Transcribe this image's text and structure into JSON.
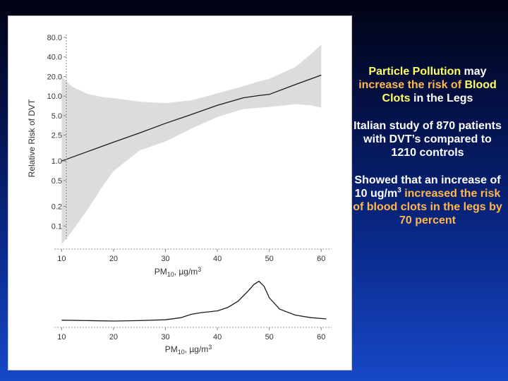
{
  "colors": {
    "background_top": "#010313",
    "background_bottom": "#1748c8",
    "highlight_yellow": "#ffff66",
    "highlight_orange": "#ffb84d",
    "confidence_band": "#dcdcdc",
    "curve": "#1a1a1a"
  },
  "chart_data": [
    {
      "type": "line",
      "title": "",
      "xlabel": "PM10, µg/m³",
      "xlabel_main": "PM",
      "xlabel_sub": "10",
      "xlabel_rest": ", µg/m",
      "xlabel_sup": "3",
      "ylabel": "Relative Risk of DVT",
      "y_scale": "log",
      "xlim": [
        9,
        62
      ],
      "ylim": [
        0.05,
        80
      ],
      "x_ticks": [
        10,
        20,
        30,
        40,
        50,
        60
      ],
      "y_ticks": [
        0.1,
        0.2,
        0.5,
        1.0,
        2.5,
        5.0,
        10.0,
        20.0,
        40.0,
        80.0
      ],
      "x_tick_labels": [
        "10",
        "20",
        "30",
        "40",
        "50",
        "60"
      ],
      "y_tick_labels": [
        "0.1",
        "0.2",
        "0.5",
        "1.0",
        "2.5",
        "5.0",
        "10.0",
        "20.0",
        "40.0",
        "80.0"
      ],
      "grid": false,
      "series": [
        {
          "role": "estimate",
          "x": [
            10,
            15,
            20,
            25,
            30,
            35,
            40,
            45,
            48,
            50,
            55,
            60
          ],
          "y": [
            1.0,
            1.4,
            1.95,
            2.7,
            3.8,
            5.2,
            7.2,
            9.4,
            10.2,
            10.6,
            15.0,
            21.0
          ]
        },
        {
          "role": "ci_upper",
          "x": [
            10,
            12,
            15,
            18,
            20,
            25,
            30,
            35,
            40,
            45,
            48,
            50,
            55,
            58,
            60
          ],
          "y": [
            20.0,
            14.0,
            10.8,
            9.6,
            9.3,
            8.2,
            7.8,
            8.6,
            11.0,
            14.2,
            16.8,
            18.4,
            28.0,
            44.0,
            62.0
          ]
        },
        {
          "role": "ci_lower",
          "x": [
            10,
            12,
            15,
            18,
            20,
            25,
            30,
            35,
            40,
            45,
            48,
            50,
            55,
            58,
            60
          ],
          "y": [
            0.052,
            0.083,
            0.18,
            0.42,
            0.7,
            1.45,
            2.0,
            3.15,
            4.75,
            6.3,
            6.6,
            6.8,
            7.5,
            7.2,
            6.6
          ]
        }
      ]
    },
    {
      "type": "line",
      "title": "",
      "xlabel": "PM10, µg/m³",
      "xlabel_main": "PM",
      "xlabel_sub": "10",
      "xlabel_rest": ", µg/m",
      "xlabel_sup": "3",
      "xlim": [
        9,
        62
      ],
      "ylim": [
        0,
        1
      ],
      "x_ticks": [
        10,
        20,
        30,
        40,
        50,
        60
      ],
      "x_tick_labels": [
        "10",
        "20",
        "30",
        "40",
        "50",
        "60"
      ],
      "grid": false,
      "series": [
        {
          "role": "density",
          "x": [
            10,
            15,
            20,
            25,
            30,
            33,
            35,
            37,
            40,
            42,
            44,
            46,
            47,
            48,
            49,
            50,
            52,
            55,
            58,
            61
          ],
          "y": [
            0.02,
            0.01,
            0.0,
            0.01,
            0.03,
            0.08,
            0.16,
            0.2,
            0.24,
            0.32,
            0.47,
            0.72,
            0.86,
            0.94,
            0.82,
            0.55,
            0.28,
            0.14,
            0.08,
            0.05
          ]
        }
      ]
    }
  ],
  "text_panel": {
    "p1": {
      "a": "Particle Pollution",
      "b": " may ",
      "c": "increase the risk of ",
      "d": "Blood Clots",
      "e": " in the Legs"
    },
    "p2": "Italian study of 870 patients with DVT’s compared to 1210 controls",
    "p3": {
      "a": "Showed that an increase of 10 ug/m",
      "sup": "3",
      "b": " increased the risk of blood clots in the legs by 70 percent"
    }
  }
}
